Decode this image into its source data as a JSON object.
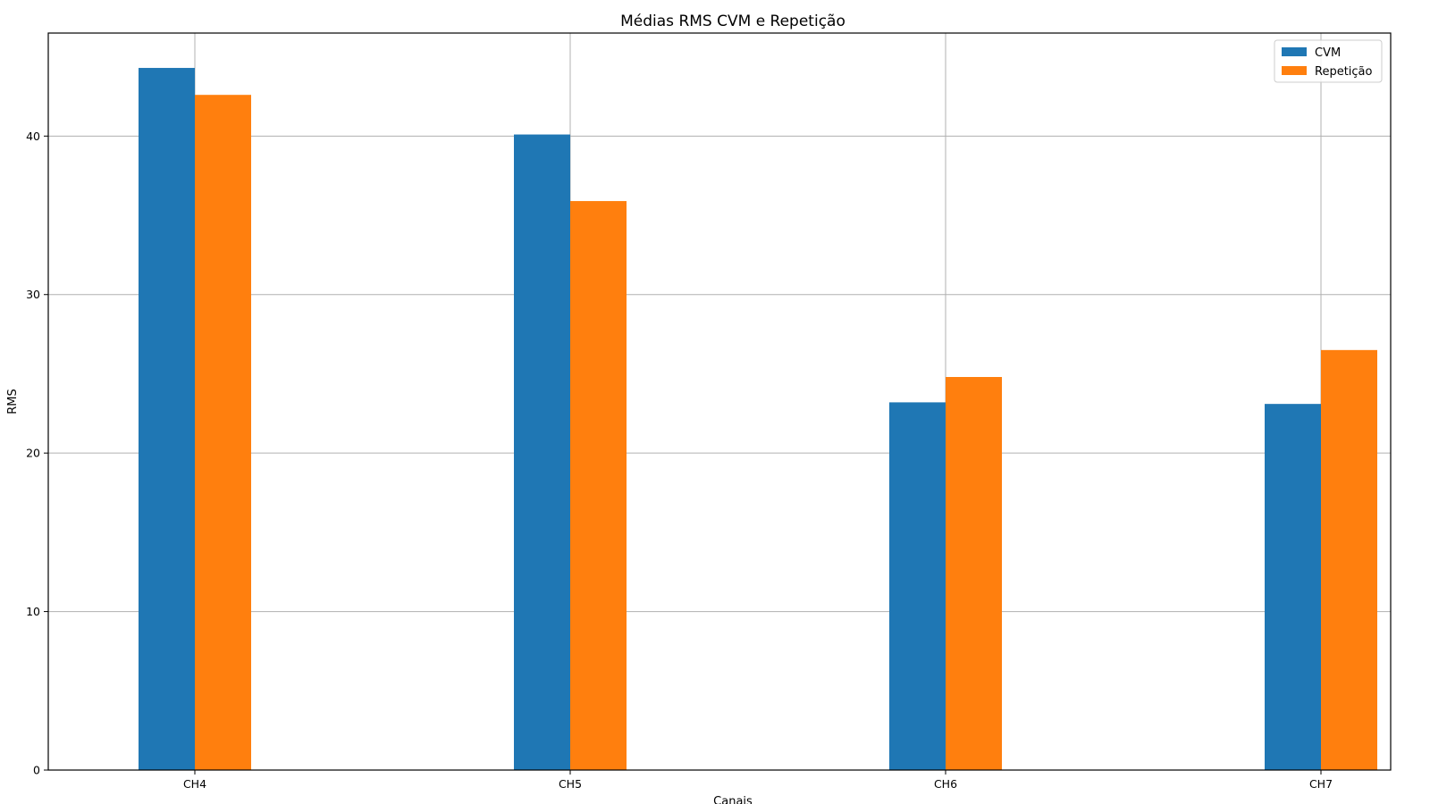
{
  "chart_data": {
    "type": "bar",
    "title": "Médias RMS CVM e Repetição",
    "xlabel": "Canais",
    "ylabel": "RMS",
    "categories": [
      "CH4",
      "CH5",
      "CH6",
      "CH7"
    ],
    "series": [
      {
        "name": "CVM",
        "values": [
          44.3,
          40.1,
          23.2,
          23.1
        ],
        "color": "#1f77b4"
      },
      {
        "name": "Repetição",
        "values": [
          42.6,
          35.9,
          24.8,
          26.5
        ],
        "color": "#ff7f0e"
      }
    ],
    "ylim": [
      0,
      46.5
    ],
    "yticks": [
      0,
      10,
      20,
      30,
      40
    ],
    "grid": true,
    "legend": "top-right"
  }
}
